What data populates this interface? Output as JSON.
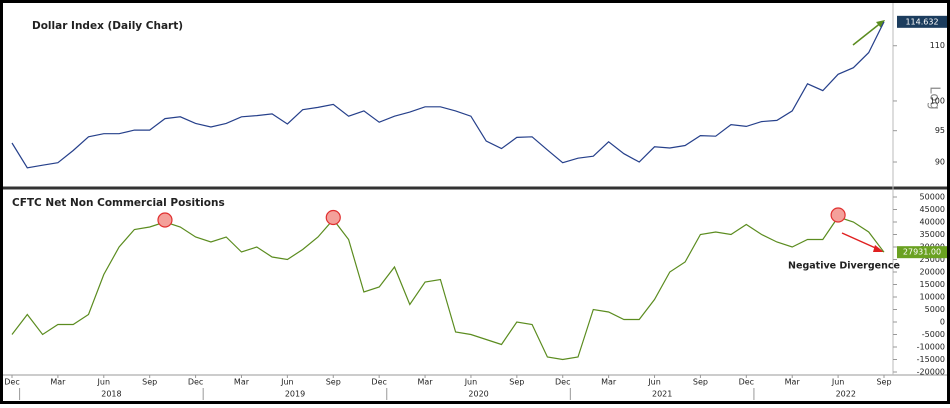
{
  "chart_data": [
    {
      "type": "line",
      "title": "Dollar Index (Daily Chart)",
      "scale_label": "Log",
      "log_scale": true,
      "x": [
        "2017-12",
        "2018-01",
        "2018-02",
        "2018-03",
        "2018-04",
        "2018-05",
        "2018-06",
        "2018-07",
        "2018-08",
        "2018-09",
        "2018-10",
        "2018-11",
        "2018-12",
        "2019-01",
        "2019-02",
        "2019-03",
        "2019-04",
        "2019-05",
        "2019-06",
        "2019-07",
        "2019-08",
        "2019-09",
        "2019-10",
        "2019-11",
        "2019-12",
        "2020-01",
        "2020-02",
        "2020-03",
        "2020-04",
        "2020-05",
        "2020-06",
        "2020-07",
        "2020-08",
        "2020-09",
        "2020-10",
        "2020-11",
        "2020-12",
        "2021-01",
        "2021-02",
        "2021-03",
        "2021-04",
        "2021-05",
        "2021-06",
        "2021-07",
        "2021-08",
        "2021-09",
        "2021-10",
        "2021-11",
        "2021-12",
        "2022-01",
        "2022-02",
        "2022-03",
        "2022-04",
        "2022-05",
        "2022-06",
        "2022-07",
        "2022-08",
        "2022-09"
      ],
      "series": [
        {
          "name": "Dollar Index",
          "color": "#26408b",
          "values": [
            93.0,
            89.1,
            89.5,
            89.9,
            91.8,
            94.0,
            94.5,
            94.5,
            95.1,
            95.1,
            97.0,
            97.3,
            96.2,
            95.6,
            96.2,
            97.3,
            97.5,
            97.8,
            96.1,
            98.5,
            98.9,
            99.4,
            97.4,
            98.3,
            96.4,
            97.4,
            98.1,
            99.0,
            99.0,
            98.3,
            97.4,
            93.3,
            92.1,
            93.9,
            94.0,
            91.9,
            89.9,
            90.6,
            90.9,
            93.2,
            91.3,
            90.0,
            92.4,
            92.2,
            92.6,
            94.2,
            94.1,
            96.0,
            95.7,
            96.5,
            96.7,
            98.3,
            103.0,
            101.8,
            104.7,
            105.9,
            108.7,
            114.632
          ]
        }
      ],
      "xlim": [
        "2017-12",
        "2022-09"
      ],
      "ylim": [
        86.5,
        117.4
      ],
      "yticks": [
        90,
        95,
        100,
        110
      ]
    },
    {
      "type": "line",
      "title": "CFTC Net Non Commercial Positions",
      "annotation": "Negative Divergence",
      "x": [
        "2017-12",
        "2018-01",
        "2018-02",
        "2018-03",
        "2018-04",
        "2018-05",
        "2018-06",
        "2018-07",
        "2018-08",
        "2018-09",
        "2018-10",
        "2018-11",
        "2018-12",
        "2019-01",
        "2019-02",
        "2019-03",
        "2019-04",
        "2019-05",
        "2019-06",
        "2019-07",
        "2019-08",
        "2019-09",
        "2019-10",
        "2019-11",
        "2019-12",
        "2020-01",
        "2020-02",
        "2020-03",
        "2020-04",
        "2020-05",
        "2020-06",
        "2020-07",
        "2020-08",
        "2020-09",
        "2020-10",
        "2020-11",
        "2020-12",
        "2021-01",
        "2021-02",
        "2021-03",
        "2021-04",
        "2021-05",
        "2021-06",
        "2021-07",
        "2021-08",
        "2021-09",
        "2021-10",
        "2021-11",
        "2021-12",
        "2022-01",
        "2022-02",
        "2022-03",
        "2022-04",
        "2022-05",
        "2022-06",
        "2022-07",
        "2022-08",
        "2022-09"
      ],
      "series": [
        {
          "name": "CFTC Net Non Commercial Positions",
          "color": "#5b8c1f",
          "values": [
            -5000,
            3000,
            -5000,
            -1000,
            -1000,
            3000,
            19000,
            30000,
            37000,
            38000,
            40000,
            38000,
            34000,
            32000,
            34000,
            28000,
            30000,
            26000,
            25000,
            29000,
            34000,
            41000,
            33000,
            12000,
            14000,
            22000,
            7000,
            16000,
            17000,
            -4000,
            -5000,
            -7000,
            -9000,
            0,
            -1000,
            -14000,
            -15000,
            -14000,
            5000,
            4000,
            1000,
            1000,
            9000,
            20000,
            24000,
            35000,
            36000,
            35000,
            39000,
            35000,
            32000,
            30000,
            33000,
            33000,
            42000,
            40000,
            36000,
            27931
          ],
          "value_labels": {
            "57": "27931.00"
          }
        }
      ],
      "highlights": [
        10,
        21,
        54
      ],
      "xlim": [
        "2017-12",
        "2022-09"
      ],
      "ylim": [
        -20000,
        50000
      ],
      "yticks": [
        -20000,
        -15000,
        -10000,
        -5000,
        0,
        5000,
        10000,
        15000,
        20000,
        25000,
        30000,
        35000,
        40000,
        45000,
        50000
      ],
      "xticks": [
        {
          "value": "2017-12",
          "label": "Dec"
        },
        {
          "value": "2018-03",
          "label": "Mar"
        },
        {
          "value": "2018-06",
          "label": "Jun"
        },
        {
          "value": "2018-09",
          "label": "Sep"
        },
        {
          "value": "2018-12",
          "label": "Dec"
        },
        {
          "value": "2019-03",
          "label": "Mar"
        },
        {
          "value": "2019-06",
          "label": "Jun"
        },
        {
          "value": "2019-09",
          "label": "Sep"
        },
        {
          "value": "2019-12",
          "label": "Dec"
        },
        {
          "value": "2020-03",
          "label": "Mar"
        },
        {
          "value": "2020-06",
          "label": "Jun"
        },
        {
          "value": "2020-09",
          "label": "Sep"
        },
        {
          "value": "2020-12",
          "label": "Dec"
        },
        {
          "value": "2021-03",
          "label": "Mar"
        },
        {
          "value": "2021-06",
          "label": "Jun"
        },
        {
          "value": "2021-09",
          "label": "Sep"
        },
        {
          "value": "2021-12",
          "label": "Dec"
        },
        {
          "value": "2022-03",
          "label": "Mar"
        },
        {
          "value": "2022-06",
          "label": "Jun"
        },
        {
          "value": "2022-09",
          "label": "Sep"
        }
      ],
      "year_ticks": [
        "2018",
        "2019",
        "2020",
        "2021",
        "2022"
      ]
    }
  ]
}
